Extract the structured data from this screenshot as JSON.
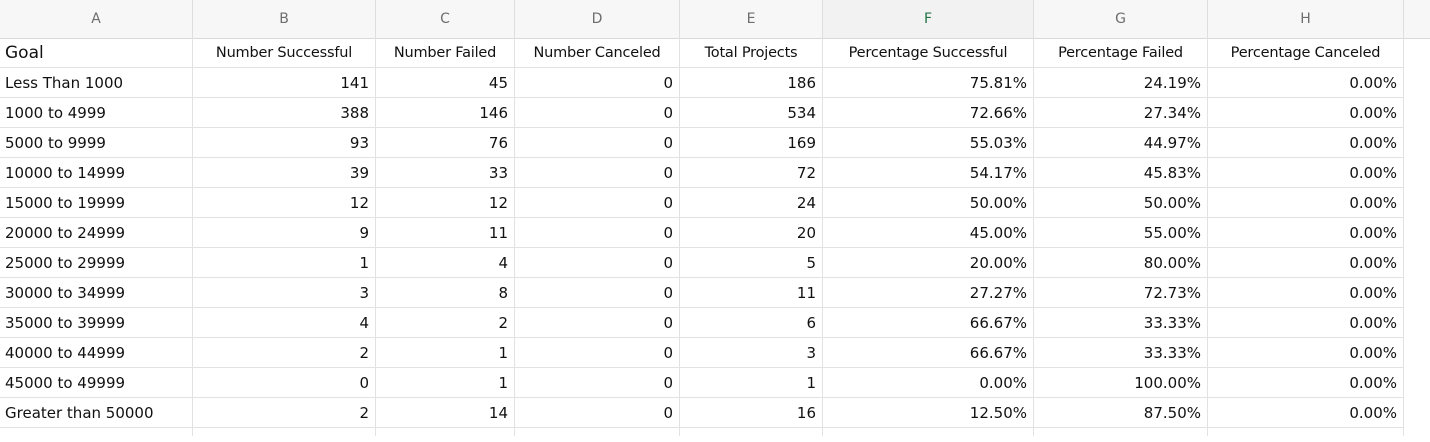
{
  "columns": [
    {
      "letter": "A",
      "selected": false
    },
    {
      "letter": "B",
      "selected": false
    },
    {
      "letter": "C",
      "selected": false
    },
    {
      "letter": "D",
      "selected": false
    },
    {
      "letter": "E",
      "selected": false
    },
    {
      "letter": "F",
      "selected": true
    },
    {
      "letter": "G",
      "selected": false
    },
    {
      "letter": "H",
      "selected": false
    }
  ],
  "table": {
    "headers": [
      "Goal",
      "Number Successful",
      "Number Failed",
      "Number Canceled",
      "Total Projects",
      "Percentage Successful",
      "Percentage Failed",
      "Percentage Canceled"
    ],
    "rows": [
      [
        "Less Than 1000",
        "141",
        "45",
        "0",
        "186",
        "75.81%",
        "24.19%",
        "0.00%"
      ],
      [
        "1000 to 4999",
        "388",
        "146",
        "0",
        "534",
        "72.66%",
        "27.34%",
        "0.00%"
      ],
      [
        "5000 to 9999",
        "93",
        "76",
        "0",
        "169",
        "55.03%",
        "44.97%",
        "0.00%"
      ],
      [
        "10000 to 14999",
        "39",
        "33",
        "0",
        "72",
        "54.17%",
        "45.83%",
        "0.00%"
      ],
      [
        "15000 to 19999",
        "12",
        "12",
        "0",
        "24",
        "50.00%",
        "50.00%",
        "0.00%"
      ],
      [
        "20000 to 24999",
        "9",
        "11",
        "0",
        "20",
        "45.00%",
        "55.00%",
        "0.00%"
      ],
      [
        "25000 to 29999",
        "1",
        "4",
        "0",
        "5",
        "20.00%",
        "80.00%",
        "0.00%"
      ],
      [
        "30000 to 34999",
        "3",
        "8",
        "0",
        "11",
        "27.27%",
        "72.73%",
        "0.00%"
      ],
      [
        "35000 to 39999",
        "4",
        "2",
        "0",
        "6",
        "66.67%",
        "33.33%",
        "0.00%"
      ],
      [
        "40000 to 44999",
        "2",
        "1",
        "0",
        "3",
        "66.67%",
        "33.33%",
        "0.00%"
      ],
      [
        "45000 to 49999",
        "0",
        "1",
        "0",
        "1",
        "0.00%",
        "100.00%",
        "0.00%"
      ],
      [
        "Greater than 50000",
        "2",
        "14",
        "0",
        "16",
        "12.50%",
        "87.50%",
        "0.00%"
      ]
    ]
  }
}
